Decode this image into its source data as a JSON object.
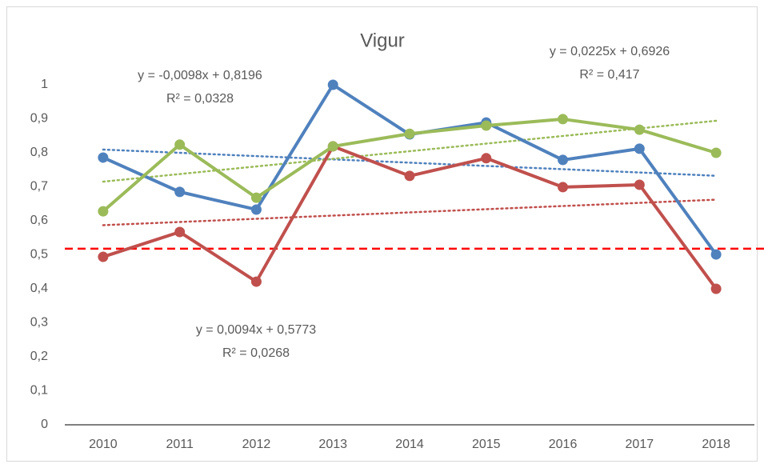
{
  "chart_data": {
    "type": "line",
    "title": "Vigur",
    "categories": [
      "2010",
      "2011",
      "2012",
      "2013",
      "2014",
      "2015",
      "2016",
      "2017",
      "2018"
    ],
    "series": [
      {
        "color": "#4f81bd",
        "values": [
          0.786,
          0.685,
          0.633,
          1.0,
          0.854,
          0.889,
          0.779,
          0.812,
          0.501
        ]
      },
      {
        "color": "#c0504d",
        "values": [
          0.494,
          0.567,
          0.421,
          0.819,
          0.732,
          0.784,
          0.699,
          0.706,
          0.4
        ]
      },
      {
        "color": "#9bbb59",
        "values": [
          0.628,
          0.824,
          0.668,
          0.819,
          0.856,
          0.88,
          0.899,
          0.868,
          0.8
        ]
      }
    ],
    "trendlines": true,
    "reference_line": 0.518,
    "reference_color": "#ff0000",
    "annotations": [
      {
        "lines": [
          "y = -0,0098x + 0,8196",
          "R² = 0,0328"
        ]
      },
      {
        "lines": [
          "y = 0,0094x + 0,5773",
          "R² = 0,0268"
        ]
      },
      {
        "lines": [
          "y = 0,0225x + 0,6926",
          "R² = 0,417"
        ]
      }
    ],
    "ylim": [
      0,
      1
    ],
    "yticks": [
      0,
      {
        "value": 0.1,
        "label": "0,1"
      },
      {
        "value": 0.2,
        "label": "0,2"
      },
      {
        "value": 0.3,
        "label": "0,3"
      },
      {
        "value": 0.4,
        "label": "0,4"
      },
      {
        "value": 0.5,
        "label": "0,5"
      },
      {
        "value": 0.6,
        "label": "0,6"
      },
      {
        "value": 0.7,
        "label": "0,7"
      },
      {
        "value": 0.8,
        "label": "0,8"
      },
      {
        "value": 0.9,
        "label": "0,9"
      },
      1
    ],
    "grid": false
  }
}
